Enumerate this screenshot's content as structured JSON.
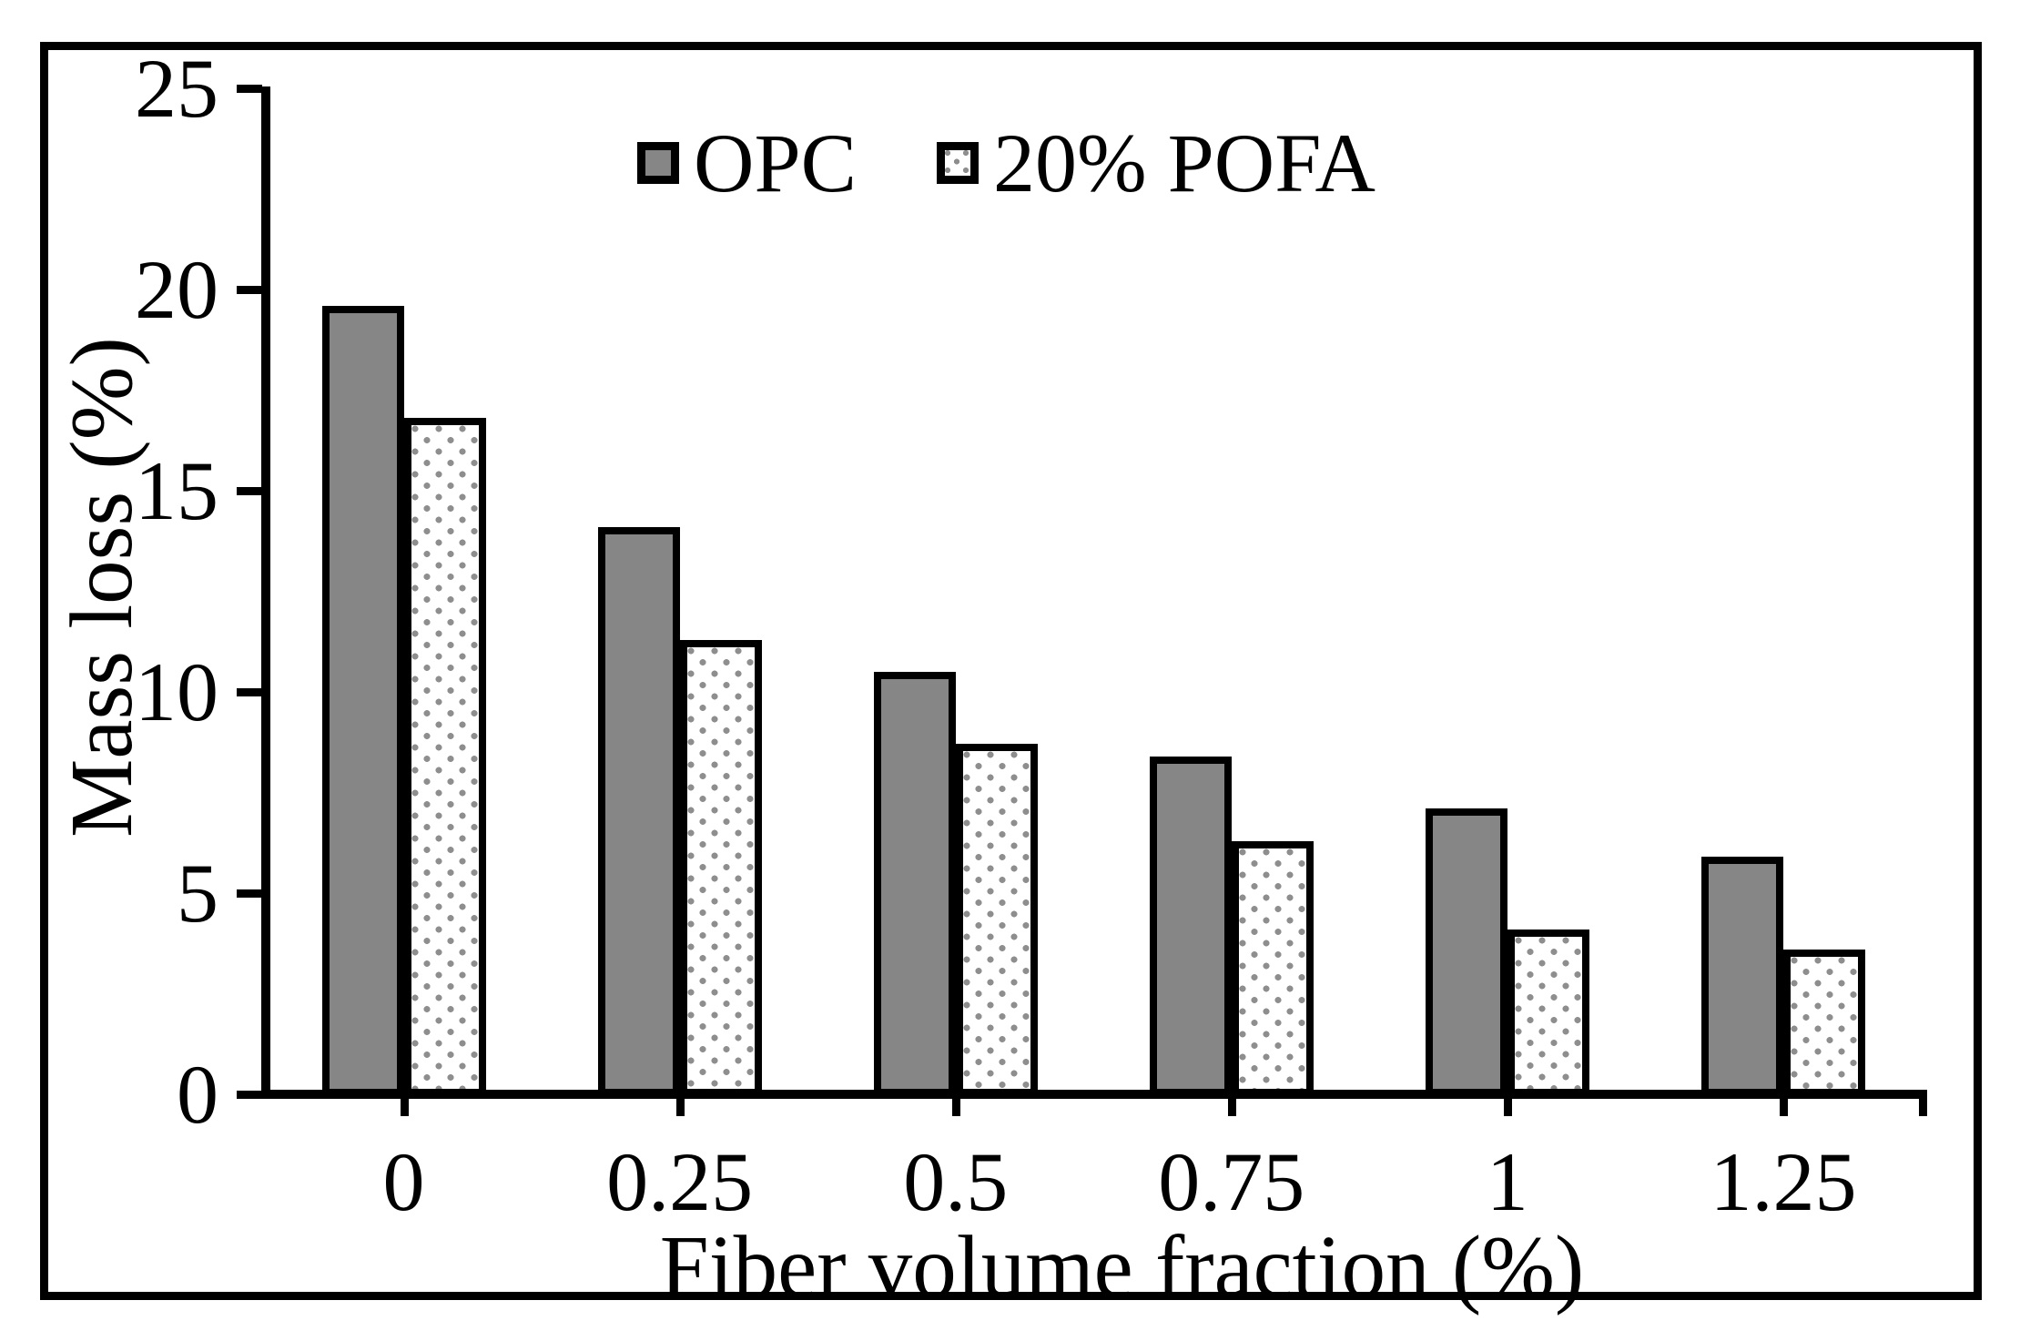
{
  "chart_data": {
    "type": "bar",
    "title": "",
    "categories": [
      "0",
      "0.25",
      "0.5",
      "0.75",
      "1",
      "1.25"
    ],
    "series": [
      {
        "name": "OPC",
        "values": [
          19.6,
          14.1,
          10.5,
          8.4,
          7.1,
          5.9
        ],
        "fill": "#868686",
        "pattern": "solid"
      },
      {
        "name": "20% POFA",
        "values": [
          16.8,
          11.3,
          8.7,
          6.3,
          4.1,
          3.6
        ],
        "fill": "#ffffff",
        "pattern": "dotted",
        "dot_color": "#8e8e8e"
      }
    ],
    "xlabel": "Fiber volume fraction (%)",
    "ylabel": "Mass loss (%)",
    "ylim": [
      0,
      25
    ],
    "y_ticks": [
      0,
      5,
      10,
      15,
      20,
      25
    ],
    "legend_position": "top-center-inside",
    "grid": false,
    "bar_border_color": "#000000",
    "frame_color": "#000000"
  }
}
